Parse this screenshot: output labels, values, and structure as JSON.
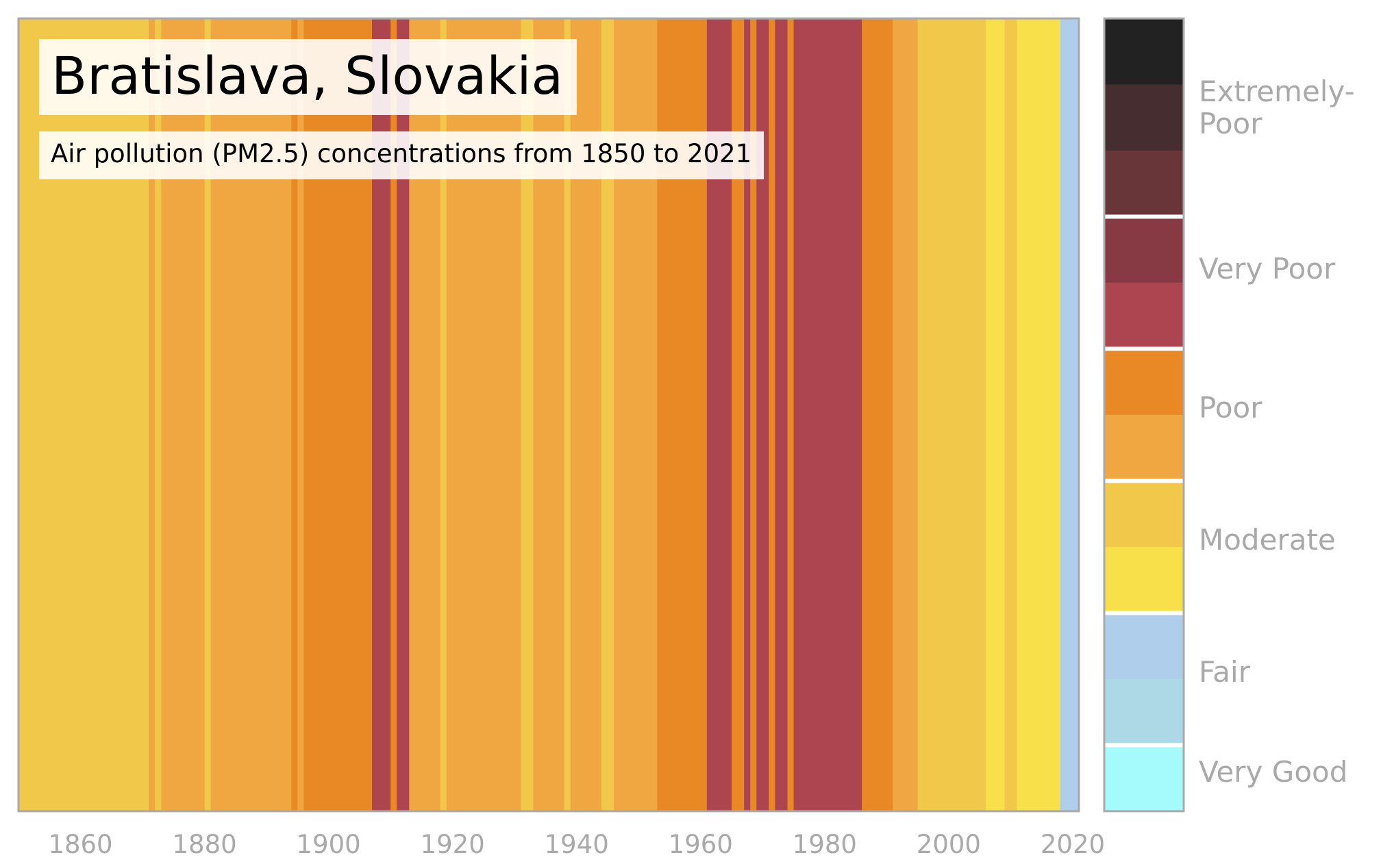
{
  "header": {
    "title": "Bratislava, Slovakia",
    "subtitle": "Air pollution (PM2.5) concentrations from 1850 to 2021"
  },
  "chart_data": {
    "type": "heatmap",
    "title": "Bratislava, Slovakia",
    "subtitle": "Air pollution (PM2.5) concentrations from 1850 to 2021",
    "xlabel": "",
    "ylabel": "",
    "x_range": [
      1850,
      2021
    ],
    "x_ticks": [
      1860,
      1880,
      1900,
      1920,
      1940,
      1960,
      1980,
      2000,
      2020
    ],
    "grid": false,
    "categories": {
      "very-good": "#A5FAFC",
      "fair-light": "#ADD8E6",
      "fair": "#AFCEEC",
      "moderate-light": "#F8E04A",
      "moderate": "#F1C84A",
      "poor-light": "#F0A742",
      "poor": "#E88926",
      "very-poor-light": "#AD4551",
      "very-poor": "#883A44",
      "extremely-poor-light": "#683539",
      "extremely-poor-mid": "#452D30",
      "extremely-poor": "#222222"
    },
    "stripes": [
      {
        "from": 1850,
        "to": 1871,
        "category": "moderate"
      },
      {
        "from": 1871,
        "to": 1872,
        "category": "poor-light"
      },
      {
        "from": 1872,
        "to": 1873,
        "category": "moderate"
      },
      {
        "from": 1873,
        "to": 1880,
        "category": "poor-light"
      },
      {
        "from": 1880,
        "to": 1881,
        "category": "moderate"
      },
      {
        "from": 1881,
        "to": 1894,
        "category": "poor-light"
      },
      {
        "from": 1894,
        "to": 1895,
        "category": "poor"
      },
      {
        "from": 1895,
        "to": 1896,
        "category": "poor-light"
      },
      {
        "from": 1896,
        "to": 1907,
        "category": "poor"
      },
      {
        "from": 1907,
        "to": 1910,
        "category": "very-poor-light"
      },
      {
        "from": 1910,
        "to": 1911,
        "category": "poor"
      },
      {
        "from": 1911,
        "to": 1913,
        "category": "very-poor-light"
      },
      {
        "from": 1913,
        "to": 1918,
        "category": "poor-light"
      },
      {
        "from": 1918,
        "to": 1919,
        "category": "moderate"
      },
      {
        "from": 1919,
        "to": 1931,
        "category": "poor-light"
      },
      {
        "from": 1931,
        "to": 1933,
        "category": "moderate"
      },
      {
        "from": 1933,
        "to": 1938,
        "category": "poor-light"
      },
      {
        "from": 1938,
        "to": 1939,
        "category": "moderate"
      },
      {
        "from": 1939,
        "to": 1944,
        "category": "poor-light"
      },
      {
        "from": 1944,
        "to": 1946,
        "category": "moderate"
      },
      {
        "from": 1946,
        "to": 1953,
        "category": "poor-light"
      },
      {
        "from": 1953,
        "to": 1961,
        "category": "poor"
      },
      {
        "from": 1961,
        "to": 1965,
        "category": "very-poor-light"
      },
      {
        "from": 1965,
        "to": 1967,
        "category": "poor"
      },
      {
        "from": 1967,
        "to": 1968,
        "category": "very-poor-light"
      },
      {
        "from": 1968,
        "to": 1969,
        "category": "poor"
      },
      {
        "from": 1969,
        "to": 1971,
        "category": "very-poor-light"
      },
      {
        "from": 1971,
        "to": 1972,
        "category": "poor"
      },
      {
        "from": 1972,
        "to": 1974,
        "category": "very-poor-light"
      },
      {
        "from": 1974,
        "to": 1975,
        "category": "poor"
      },
      {
        "from": 1975,
        "to": 1986,
        "category": "very-poor-light"
      },
      {
        "from": 1986,
        "to": 1991,
        "category": "poor"
      },
      {
        "from": 1991,
        "to": 1995,
        "category": "poor-light"
      },
      {
        "from": 1995,
        "to": 2006,
        "category": "moderate"
      },
      {
        "from": 2006,
        "to": 2009,
        "category": "moderate-light"
      },
      {
        "from": 2009,
        "to": 2011,
        "category": "moderate"
      },
      {
        "from": 2011,
        "to": 2018,
        "category": "moderate-light"
      },
      {
        "from": 2018,
        "to": 2021,
        "category": "fair"
      }
    ],
    "legend": {
      "placement": "right",
      "swatches": [
        "extremely-poor",
        "extremely-poor-mid",
        "extremely-poor-light",
        "very-poor",
        "very-poor-light",
        "poor",
        "poor-light",
        "moderate",
        "moderate-light",
        "fair",
        "fair-light",
        "very-good"
      ],
      "labels": [
        {
          "text": "Extremely-\nPoor",
          "category": "extremely-poor"
        },
        {
          "text": "Very Poor",
          "category": "very-poor"
        },
        {
          "text": "Poor",
          "category": "poor"
        },
        {
          "text": "Moderate",
          "category": "moderate"
        },
        {
          "text": "Fair",
          "category": "fair"
        },
        {
          "text": "Very Good",
          "category": "very-good"
        }
      ]
    }
  }
}
